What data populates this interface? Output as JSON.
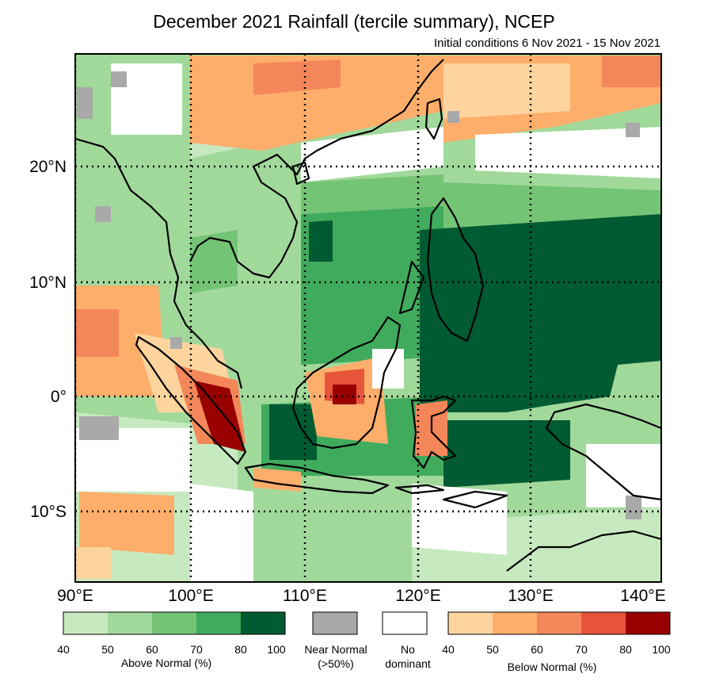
{
  "title": "December 2021 Rainfall (tercile summary), NCEP",
  "subtitle": "Initial conditions 6 Nov 2021 - 15 Nov 2021",
  "map": {
    "lon_range": [
      90,
      140
    ],
    "lat_range": [
      -16,
      30
    ],
    "lon_labels": [
      "90°E",
      "100°E",
      "110°E",
      "120°E",
      "130°E",
      "140°E"
    ],
    "lat_labels": [
      "20°N",
      "10°N",
      "0°",
      "10°S"
    ],
    "grid": "dotted",
    "regions": [
      {
        "category": "below",
        "level": 2,
        "note": "northern China / Vietnam band"
      },
      {
        "category": "below",
        "level": 1,
        "note": "west of Sumatra"
      },
      {
        "category": "below",
        "level": 5,
        "note": "southern Sumatra"
      },
      {
        "category": "below",
        "level": 4,
        "note": "central Borneo"
      },
      {
        "category": "below",
        "level": 2,
        "note": "Sulawesi"
      },
      {
        "category": "above",
        "level": 5,
        "note": "Philippines / western Pacific"
      },
      {
        "category": "above",
        "level": 4,
        "note": "South China Sea / Java Sea"
      },
      {
        "category": "above",
        "level": 2,
        "note": "Indochina / Indian Ocean"
      }
    ]
  },
  "legend": {
    "above": {
      "title": "Above Normal (%)",
      "ticks": [
        "40",
        "50",
        "60",
        "70",
        "80",
        "100"
      ],
      "colors": [
        "#c7e9c0",
        "#a1d99b",
        "#74c476",
        "#41ab5d",
        "#005a32"
      ]
    },
    "near": {
      "title_line1": "Near Normal",
      "title_line2": "(>50%)",
      "color": "#a9a9a9"
    },
    "none": {
      "title_line1": "No",
      "title_line2": "dominant",
      "color": "#ffffff"
    },
    "below": {
      "title": "Below Normal (%)",
      "ticks": [
        "40",
        "50",
        "60",
        "70",
        "80",
        "100"
      ],
      "colors": [
        "#fdd49e",
        "#fdae6b",
        "#f4875a",
        "#e6553a",
        "#990000"
      ]
    }
  }
}
